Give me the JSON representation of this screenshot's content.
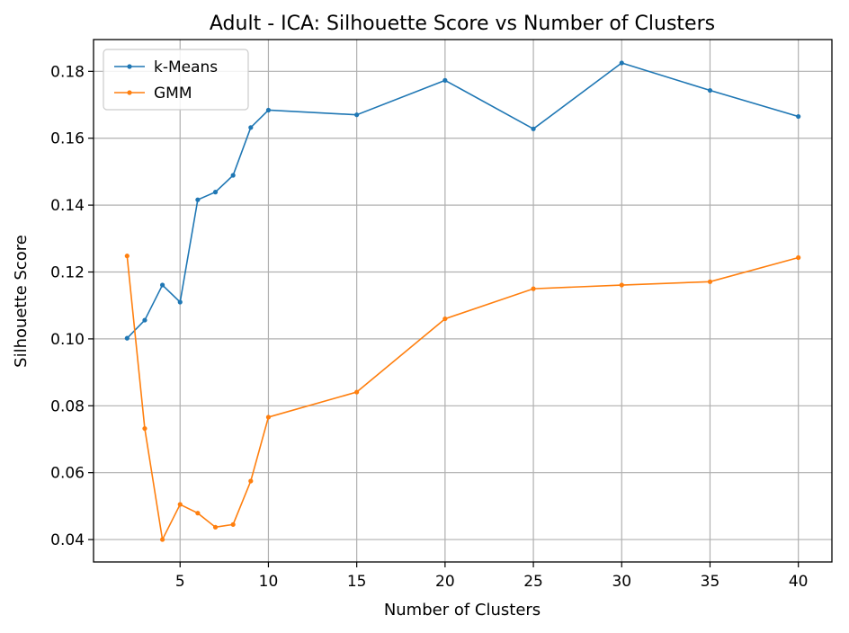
{
  "chart_data": {
    "type": "line",
    "title": "Adult - ICA: Silhouette Score vs Number of Clusters",
    "xlabel": "Number of Clusters",
    "ylabel": "Silhouette Score",
    "xlim": [
      0.1,
      41.9
    ],
    "ylim": [
      0.0333,
      0.1895
    ],
    "xticks": [
      5,
      10,
      15,
      20,
      25,
      30,
      35,
      40
    ],
    "yticks": [
      0.04,
      0.06,
      0.08,
      0.1,
      0.12,
      0.14,
      0.16,
      0.18
    ],
    "ytick_labels": [
      "0.04",
      "0.06",
      "0.08",
      "0.10",
      "0.12",
      "0.14",
      "0.16",
      "0.18"
    ],
    "grid": true,
    "legend": "top-left",
    "x": [
      2,
      3,
      4,
      5,
      6,
      7,
      8,
      9,
      10,
      15,
      20,
      25,
      30,
      35,
      40
    ],
    "series": [
      {
        "name": "k-Means",
        "color": "#1f77b4",
        "values": [
          0.1002,
          0.1056,
          0.1161,
          0.111,
          0.1416,
          0.1439,
          0.1489,
          0.1632,
          0.1684,
          0.167,
          0.1773,
          0.1628,
          0.1825,
          0.1743,
          0.1665
        ]
      },
      {
        "name": "GMM",
        "color": "#ff7f0e",
        "values": [
          0.1248,
          0.0732,
          0.04,
          0.0505,
          0.0479,
          0.0437,
          0.0445,
          0.0575,
          0.0766,
          0.0841,
          0.106,
          0.115,
          0.1161,
          0.1171,
          0.1243
        ]
      }
    ]
  }
}
